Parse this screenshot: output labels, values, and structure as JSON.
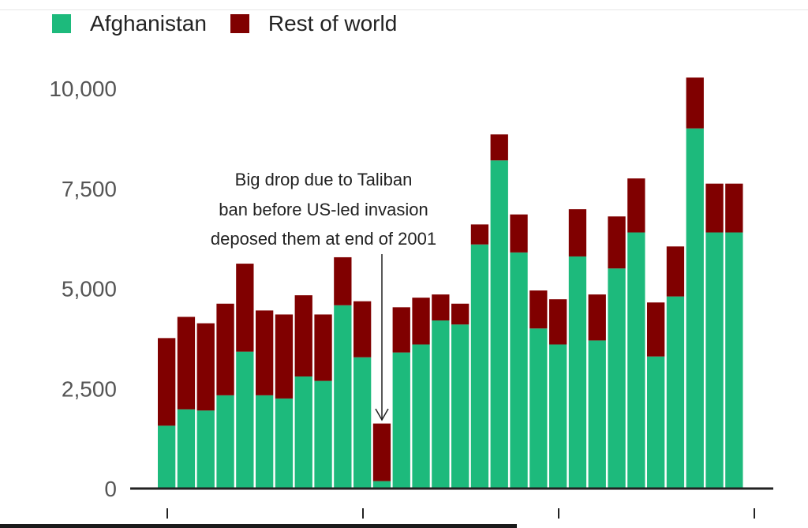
{
  "legend": {
    "afghanistan_label": "Afghanistan",
    "rest_label": "Rest of world"
  },
  "colors": {
    "afghanistan": "#1dba7c",
    "rest": "#800000"
  },
  "annotation": {
    "lines": [
      "Big drop due to Taliban",
      "ban before US-led invasion",
      "deposed them at end of 2001"
    ]
  },
  "chart_data": {
    "type": "bar",
    "stacked": true,
    "ylim": [
      0,
      10000
    ],
    "yticks": [
      0,
      2500,
      5000,
      7500,
      10000
    ],
    "ytick_labels": [
      "0",
      "2,500",
      "5,000",
      "7,500",
      "10,000"
    ],
    "series": [
      {
        "name": "Afghanistan",
        "values": [
          1570,
          1980,
          1950,
          2330,
          3420,
          2330,
          2250,
          2800,
          2690,
          4580,
          3280,
          185,
          3400,
          3600,
          4200,
          4100,
          6100,
          8200,
          5900,
          4000,
          3600,
          5800,
          3700,
          5500,
          6400,
          3300,
          4800,
          9000,
          6400,
          6400
        ]
      },
      {
        "name": "Rest of world",
        "values": [
          2190,
          2310,
          2180,
          2290,
          2200,
          2120,
          2100,
          2030,
          1660,
          1200,
          1400,
          1440,
          1130,
          1170,
          650,
          520,
          500,
          650,
          950,
          950,
          1130,
          1180,
          1150,
          1300,
          1350,
          1350,
          1250,
          1270,
          1220,
          1220
        ]
      }
    ]
  }
}
